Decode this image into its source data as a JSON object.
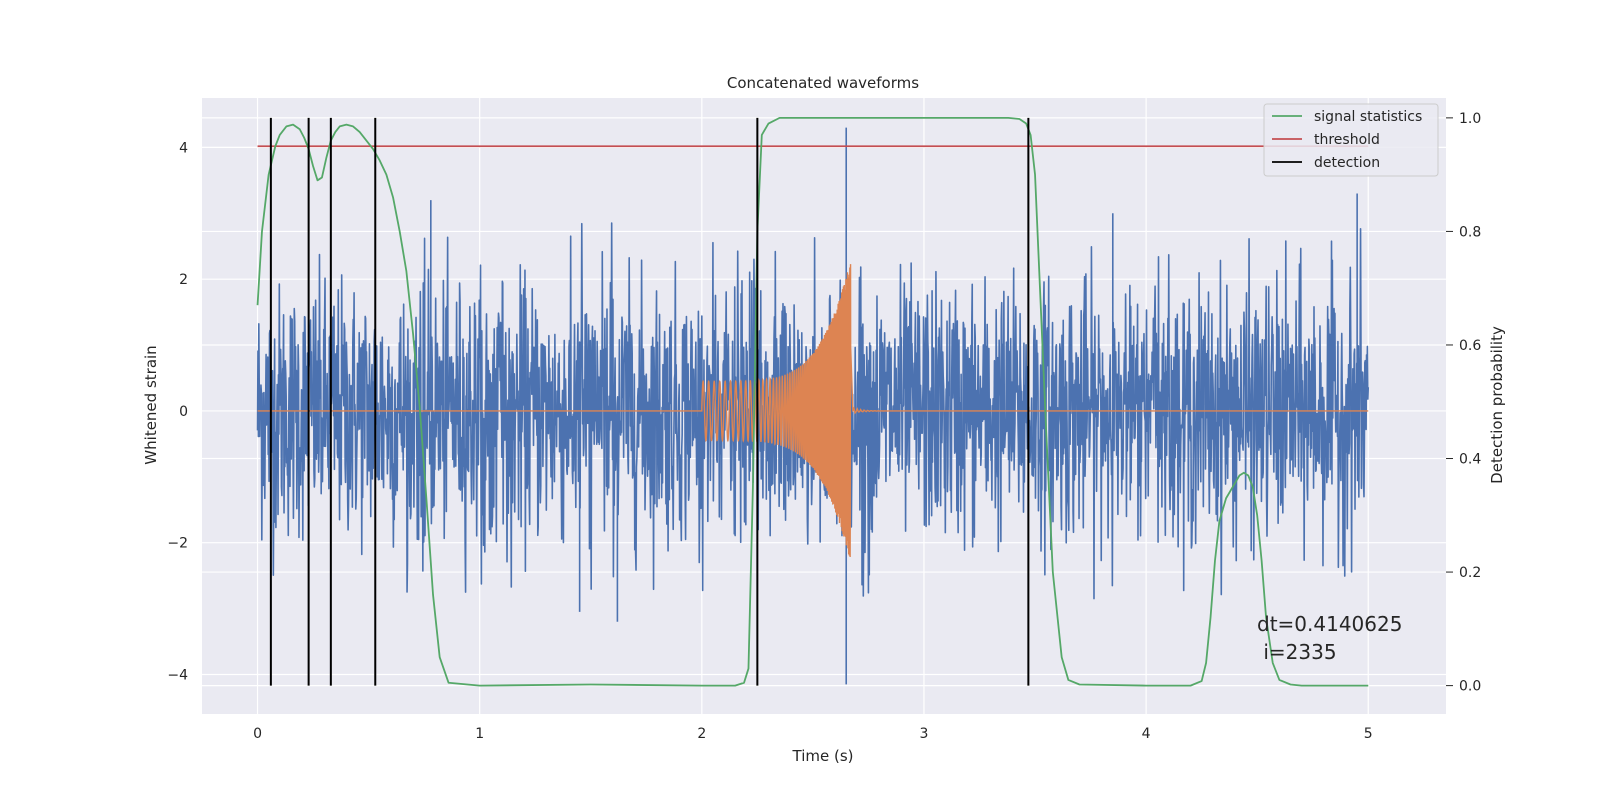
{
  "chart_data": {
    "type": "line",
    "title": "Concatenated waveforms",
    "xlabel": "Time (s)",
    "ylabel": "Whitened strain",
    "y2label": "Detection probability",
    "xlim": [
      -0.25,
      5.35
    ],
    "ylim": [
      -4.6,
      4.75
    ],
    "y2lim": [
      -0.05,
      1.035
    ],
    "xticks": [
      0,
      1,
      2,
      3,
      4,
      5
    ],
    "xtick_labels": [
      "0",
      "1",
      "2",
      "3",
      "4",
      "5"
    ],
    "yticks": [
      -4,
      -2,
      0,
      2,
      4
    ],
    "ytick_labels": [
      "−4",
      "−2",
      "0",
      "2",
      "4"
    ],
    "y2ticks": [
      0.0,
      0.2,
      0.4,
      0.6,
      0.8,
      1.0
    ],
    "y2tick_labels": [
      "0.0",
      "0.2",
      "0.4",
      "0.6",
      "0.8",
      "1.0"
    ],
    "grid": true,
    "legend_position": "top-right",
    "colors": {
      "background": "#eaeaf2",
      "grid": "#ffffff",
      "strain": "#4c72b0",
      "waveform": "#dd8452",
      "statistics": "#55a868",
      "threshold": "#c44e52",
      "detection": "#000000"
    },
    "series": [
      {
        "name": "",
        "axis": "left",
        "kind": "noise",
        "x_range": [
          0,
          5
        ],
        "envelope": 2.6,
        "extremes": [
          [
            2.65,
            4.3
          ],
          [
            2.65,
            -4.15
          ],
          [
            0.78,
            3.2
          ],
          [
            3.85,
            3.0
          ],
          [
            4.95,
            3.3
          ],
          [
            1.62,
            -3.2
          ],
          [
            1.45,
            -3.05
          ]
        ]
      },
      {
        "name": "",
        "axis": "left",
        "kind": "chirp",
        "x_range": [
          0,
          5
        ],
        "chirp_start": 2.0,
        "chirp_end": 2.67,
        "amp_start": 0.45,
        "amp_end": 2.3
      },
      {
        "name": "signal statistics",
        "axis": "right",
        "x": [
          0,
          0.02,
          0.05,
          0.08,
          0.1,
          0.13,
          0.16,
          0.19,
          0.21,
          0.23,
          0.25,
          0.27,
          0.29,
          0.31,
          0.33,
          0.35,
          0.37,
          0.4,
          0.43,
          0.46,
          0.49,
          0.52,
          0.55,
          0.58,
          0.61,
          0.64,
          0.67,
          0.7,
          0.73,
          0.76,
          0.79,
          0.82,
          0.86,
          1.0,
          1.5,
          2.0,
          2.15,
          2.19,
          2.21,
          2.23,
          2.25,
          2.27,
          2.3,
          2.35,
          3.0,
          3.38,
          3.43,
          3.46,
          3.48,
          3.5,
          3.52,
          3.55,
          3.58,
          3.62,
          3.65,
          3.7,
          4.0,
          4.2,
          4.25,
          4.27,
          4.29,
          4.31,
          4.33,
          4.36,
          4.39,
          4.42,
          4.44,
          4.46,
          4.48,
          4.5,
          4.52,
          4.54,
          4.57,
          4.6,
          4.65,
          4.7,
          5.0
        ],
        "y": [
          0.67,
          0.8,
          0.9,
          0.95,
          0.97,
          0.985,
          0.988,
          0.98,
          0.965,
          0.945,
          0.915,
          0.89,
          0.895,
          0.93,
          0.96,
          0.975,
          0.985,
          0.988,
          0.985,
          0.975,
          0.96,
          0.945,
          0.925,
          0.9,
          0.86,
          0.8,
          0.73,
          0.62,
          0.49,
          0.33,
          0.16,
          0.05,
          0.005,
          0.0,
          0.002,
          0.0,
          0.0,
          0.005,
          0.03,
          0.35,
          0.8,
          0.97,
          0.99,
          1.0,
          1.0,
          1.0,
          0.998,
          0.99,
          0.97,
          0.9,
          0.72,
          0.45,
          0.2,
          0.05,
          0.01,
          0.002,
          0.0,
          0.0,
          0.008,
          0.04,
          0.12,
          0.22,
          0.29,
          0.33,
          0.35,
          0.37,
          0.375,
          0.37,
          0.35,
          0.3,
          0.22,
          0.12,
          0.04,
          0.01,
          0.002,
          0.0,
          0.0
        ]
      },
      {
        "name": "threshold",
        "axis": "right",
        "x": [
          0,
          5
        ],
        "y": [
          0.95,
          0.95
        ]
      },
      {
        "name": "detection",
        "axis": "right",
        "kind": "vlines",
        "x": [
          0.06,
          0.23,
          0.33,
          0.53,
          2.25,
          3.47
        ],
        "ymin": 0.0,
        "ymax": 1.0
      }
    ],
    "legend": [
      "signal statistics",
      "threshold",
      "detection"
    ],
    "annotation": {
      "line1": "dt=0.4140625",
      "line2": " i=2335",
      "x": 4.5,
      "y": -3.1
    }
  }
}
